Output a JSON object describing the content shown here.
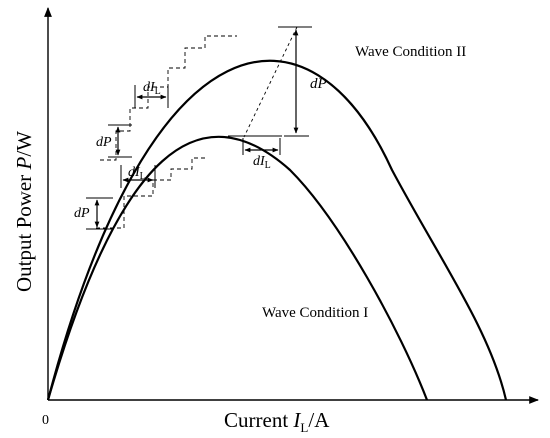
{
  "axes": {
    "origin_label": "0",
    "x_label_prefix": "Current ",
    "x_label_var": "I",
    "x_label_sub": "L",
    "x_label_unit": "/A",
    "y_label_prefix": "Output Power ",
    "y_label_var": "P",
    "y_label_unit": "/W"
  },
  "curves": {
    "condition_1_label": "Wave Condition I",
    "condition_2_label": "Wave Condition II"
  },
  "annotations": {
    "dP_var": "dP",
    "dI_var": "dI",
    "dI_sub": "L"
  }
}
